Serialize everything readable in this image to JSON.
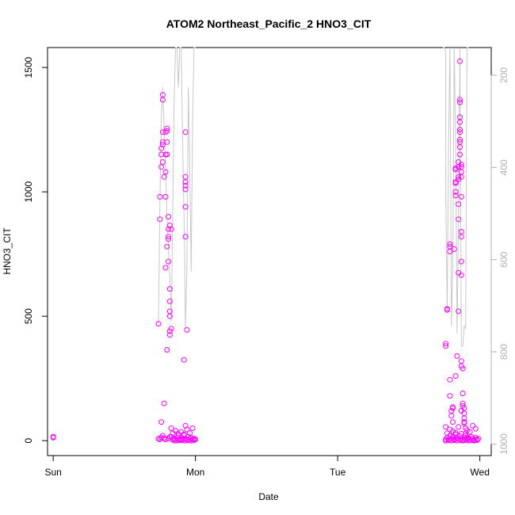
{
  "chart_data": {
    "type": "scatter",
    "title": "ATOM2 Northeast_Pacific_2 HNO3_CIT",
    "xlabel": "Date",
    "ylabel": "HNO3_CIT",
    "x_ticks": [
      {
        "value": 0,
        "label": "Sun"
      },
      {
        "value": 1,
        "label": "Mon"
      },
      {
        "value": 2,
        "label": "Tue"
      },
      {
        "value": 3,
        "label": "Wed"
      }
    ],
    "xlim": [
      -0.04,
      3.08
    ],
    "ylim": [
      -60,
      1580
    ],
    "y_ticks": [
      0,
      500,
      1000,
      1500
    ],
    "right_axis": {
      "ticks": [
        200,
        400,
        600,
        800,
        1000
      ],
      "ylim": [
        1025,
        140
      ],
      "color": "#b0b0b0"
    },
    "colors": {
      "points": "#ff00ff",
      "line": "#c8c8c8"
    },
    "series": [
      {
        "kind": "points",
        "points": [
          [
            0.0,
            12
          ],
          [
            0.0,
            16
          ],
          [
            0.74,
            8
          ],
          [
            0.75,
            5
          ],
          [
            0.76,
            12
          ],
          [
            0.77,
            20
          ],
          [
            0.78,
            10
          ],
          [
            0.79,
            5
          ],
          [
            0.81,
            8
          ],
          [
            0.82,
            15
          ],
          [
            0.74,
            470
          ],
          [
            0.75,
            890
          ],
          [
            0.75,
            980
          ],
          [
            0.76,
            1100
          ],
          [
            0.76,
            1150
          ],
          [
            0.77,
            1190
          ],
          [
            0.77,
            1200
          ],
          [
            0.77,
            1240
          ],
          [
            0.78,
            1060
          ],
          [
            0.76,
            1175
          ],
          [
            0.77,
            1370
          ],
          [
            0.77,
            1390
          ],
          [
            0.77,
            1120
          ],
          [
            0.78,
            150
          ],
          [
            0.76,
            75
          ],
          [
            0.79,
            1080
          ],
          [
            0.79,
            1150
          ],
          [
            0.79,
            1240
          ],
          [
            0.8,
            1255
          ],
          [
            0.8,
            1245
          ],
          [
            0.79,
            980
          ],
          [
            0.8,
            1200
          ],
          [
            0.8,
            1150
          ],
          [
            0.81,
            900
          ],
          [
            0.81,
            850
          ],
          [
            0.81,
            820
          ],
          [
            0.81,
            810
          ],
          [
            0.8,
            780
          ],
          [
            0.81,
            720
          ],
          [
            0.79,
            695
          ],
          [
            0.8,
            365
          ],
          [
            0.82,
            610
          ],
          [
            0.82,
            560
          ],
          [
            0.82,
            520
          ],
          [
            0.82,
            500
          ],
          [
            0.83,
            450
          ],
          [
            0.82,
            440
          ],
          [
            0.82,
            425
          ],
          [
            0.82,
            865
          ],
          [
            0.83,
            850
          ],
          [
            0.83,
            15
          ],
          [
            0.84,
            5
          ],
          [
            0.85,
            8
          ],
          [
            0.86,
            3
          ],
          [
            0.87,
            12
          ],
          [
            0.88,
            20
          ],
          [
            0.89,
            6
          ],
          [
            0.9,
            2
          ],
          [
            0.91,
            10
          ],
          [
            0.92,
            25
          ],
          [
            0.93,
            8
          ],
          [
            0.94,
            4
          ],
          [
            0.95,
            15
          ],
          [
            0.96,
            6
          ],
          [
            0.97,
            12
          ],
          [
            0.98,
            3
          ],
          [
            0.99,
            8
          ],
          [
            1.0,
            5
          ],
          [
            0.84,
            30
          ],
          [
            0.86,
            40
          ],
          [
            0.88,
            28
          ],
          [
            0.9,
            35
          ],
          [
            0.92,
            22
          ],
          [
            0.94,
            45
          ],
          [
            0.96,
            30
          ],
          [
            0.98,
            50
          ],
          [
            0.83,
            50
          ],
          [
            0.87,
            0
          ],
          [
            0.91,
            2
          ],
          [
            0.93,
            0
          ],
          [
            0.95,
            1
          ],
          [
            0.97,
            0
          ],
          [
            0.99,
            2
          ],
          [
            0.85,
            0
          ],
          [
            0.89,
            1
          ],
          [
            0.92,
            325
          ],
          [
            0.93,
            820
          ],
          [
            0.93,
            1240
          ],
          [
            0.93,
            1060
          ],
          [
            0.93,
            1040
          ],
          [
            0.93,
            1025
          ],
          [
            0.93,
            1010
          ],
          [
            0.93,
            940
          ],
          [
            0.94,
            445
          ],
          [
            0.93,
            60
          ],
          [
            2.76,
            5
          ],
          [
            2.77,
            12
          ],
          [
            2.78,
            3
          ],
          [
            2.79,
            20
          ],
          [
            2.8,
            8
          ],
          [
            2.81,
            15
          ],
          [
            2.82,
            5
          ],
          [
            2.83,
            25
          ],
          [
            2.84,
            10
          ],
          [
            2.85,
            6
          ],
          [
            2.86,
            18
          ],
          [
            2.87,
            8
          ],
          [
            2.88,
            3
          ],
          [
            2.89,
            12
          ],
          [
            2.9,
            20
          ],
          [
            2.91,
            6
          ],
          [
            2.92,
            10
          ],
          [
            2.93,
            4
          ],
          [
            2.94,
            15
          ],
          [
            2.95,
            8
          ],
          [
            2.96,
            2
          ],
          [
            2.97,
            12
          ],
          [
            2.98,
            5
          ],
          [
            2.99,
            8
          ],
          [
            2.76,
            0
          ],
          [
            2.78,
            1
          ],
          [
            2.8,
            0
          ],
          [
            2.82,
            2
          ],
          [
            2.84,
            0
          ],
          [
            2.86,
            1
          ],
          [
            2.88,
            0
          ],
          [
            2.9,
            2
          ],
          [
            2.92,
            0
          ],
          [
            2.94,
            1
          ],
          [
            2.96,
            0
          ],
          [
            2.98,
            2
          ],
          [
            2.77,
            30
          ],
          [
            2.79,
            45
          ],
          [
            2.81,
            38
          ],
          [
            2.83,
            32
          ],
          [
            2.85,
            55
          ],
          [
            2.87,
            28
          ],
          [
            2.89,
            70
          ],
          [
            2.91,
            42
          ],
          [
            2.93,
            35
          ],
          [
            2.95,
            60
          ],
          [
            2.97,
            48
          ],
          [
            2.76,
            55
          ],
          [
            2.76,
            390
          ],
          [
            2.76,
            380
          ],
          [
            2.77,
            525
          ],
          [
            2.77,
            530
          ],
          [
            2.79,
            760
          ],
          [
            2.79,
            780
          ],
          [
            2.79,
            790
          ],
          [
            2.79,
            180
          ],
          [
            2.79,
            245
          ],
          [
            2.8,
            100
          ],
          [
            2.8,
            120
          ],
          [
            2.81,
            130
          ],
          [
            2.81,
            135
          ],
          [
            2.81,
            75
          ],
          [
            2.82,
            770
          ],
          [
            2.83,
            260
          ],
          [
            2.83,
            985
          ],
          [
            2.83,
            1000
          ],
          [
            2.83,
            1035
          ],
          [
            2.83,
            1040
          ],
          [
            2.83,
            1090
          ],
          [
            2.83,
            1095
          ],
          [
            2.84,
            340
          ],
          [
            2.85,
            520
          ],
          [
            2.85,
            675
          ],
          [
            2.85,
            890
          ],
          [
            2.85,
            950
          ],
          [
            2.85,
            1050
          ],
          [
            2.85,
            1060
          ],
          [
            2.85,
            1100
          ],
          [
            2.85,
            1120
          ],
          [
            2.86,
            1150
          ],
          [
            2.86,
            1180
          ],
          [
            2.86,
            1200
          ],
          [
            2.86,
            1210
          ],
          [
            2.86,
            1240
          ],
          [
            2.86,
            1250
          ],
          [
            2.86,
            1280
          ],
          [
            2.86,
            1300
          ],
          [
            2.86,
            1360
          ],
          [
            2.86,
            1370
          ],
          [
            2.86,
            1525
          ],
          [
            2.87,
            1110
          ],
          [
            2.87,
            1100
          ],
          [
            2.87,
            1080
          ],
          [
            2.87,
            1060
          ],
          [
            2.87,
            980
          ],
          [
            2.87,
            840
          ],
          [
            2.87,
            820
          ],
          [
            2.87,
            720
          ],
          [
            2.87,
            665
          ],
          [
            2.87,
            320
          ],
          [
            2.87,
            300
          ],
          [
            2.88,
            290
          ],
          [
            2.88,
            190
          ],
          [
            2.88,
            150
          ],
          [
            2.88,
            140
          ],
          [
            2.89,
            130
          ],
          [
            2.89,
            110
          ],
          [
            2.89,
            90
          ],
          [
            2.89,
            75
          ],
          [
            2.9,
            50
          ],
          [
            2.9,
            30
          ],
          [
            2.9,
            20
          ],
          [
            2.91,
            10
          ],
          [
            2.87,
            120
          ]
        ]
      },
      {
        "kind": "line",
        "points": [
          [
            0.74,
            470
          ],
          [
            0.75,
            950
          ],
          [
            0.76,
            1300
          ],
          [
            0.77,
            1420
          ],
          [
            0.78,
            1250
          ],
          [
            0.79,
            1100
          ],
          [
            0.8,
            900
          ],
          [
            0.81,
            780
          ],
          [
            0.82,
            650
          ],
          [
            0.83,
            480
          ],
          [
            0.84,
            900
          ],
          [
            0.85,
            1350
          ],
          [
            0.86,
            1580
          ],
          [
            0.87,
            1580
          ],
          [
            0.88,
            1420
          ],
          [
            0.89,
            1580
          ],
          [
            0.9,
            1580
          ],
          [
            0.91,
            1200
          ],
          [
            0.92,
            900
          ],
          [
            0.93,
            450
          ],
          [
            0.94,
            700
          ],
          [
            0.95,
            1420
          ],
          [
            0.96,
            1100
          ],
          [
            0.97,
            680
          ],
          [
            0.98,
            1300
          ],
          [
            0.99,
            1580
          ],
          [
            1.0,
            1580
          ],
          [
            2.74,
            1580
          ],
          [
            2.75,
            1580
          ],
          [
            2.76,
            1560
          ],
          [
            2.76,
            1000
          ],
          [
            2.77,
            520
          ],
          [
            2.78,
            1200
          ],
          [
            2.79,
            1580
          ],
          [
            2.795,
            1100
          ],
          [
            2.8,
            460
          ],
          [
            2.81,
            700
          ],
          [
            2.82,
            1580
          ],
          [
            2.83,
            1200
          ],
          [
            2.84,
            430
          ],
          [
            2.85,
            900
          ],
          [
            2.86,
            1580
          ],
          [
            2.865,
            900
          ],
          [
            2.87,
            380
          ],
          [
            2.88,
            380
          ],
          [
            2.89,
            460
          ],
          [
            2.9,
            450
          ],
          [
            2.905,
            1100
          ],
          [
            2.91,
            1580
          ],
          [
            2.92,
            1580
          ]
        ]
      }
    ]
  }
}
